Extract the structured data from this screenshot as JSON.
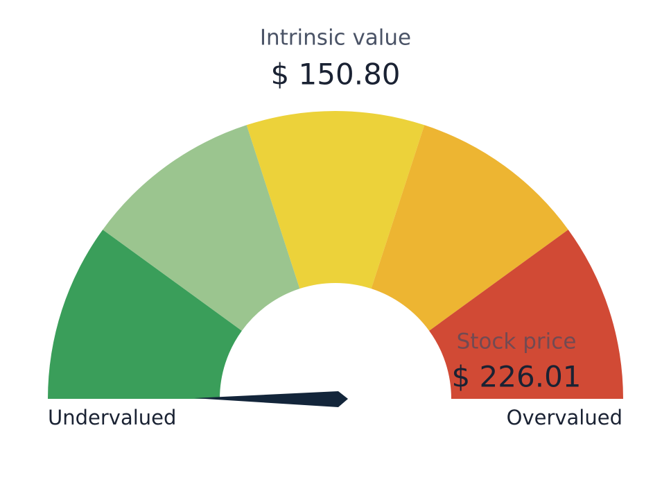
{
  "title": "Intrinsic value",
  "intrinsic_value": "$ 150.80",
  "stock_price_label": "Stock price",
  "stock_price": "$ 226.01",
  "min_label": "Undervalued",
  "max_label": "Overvalued",
  "segment_colors": [
    "#3a9e5a",
    "#9bc58f",
    "#ecd23a",
    "#edb532",
    "#d14a35"
  ]
}
